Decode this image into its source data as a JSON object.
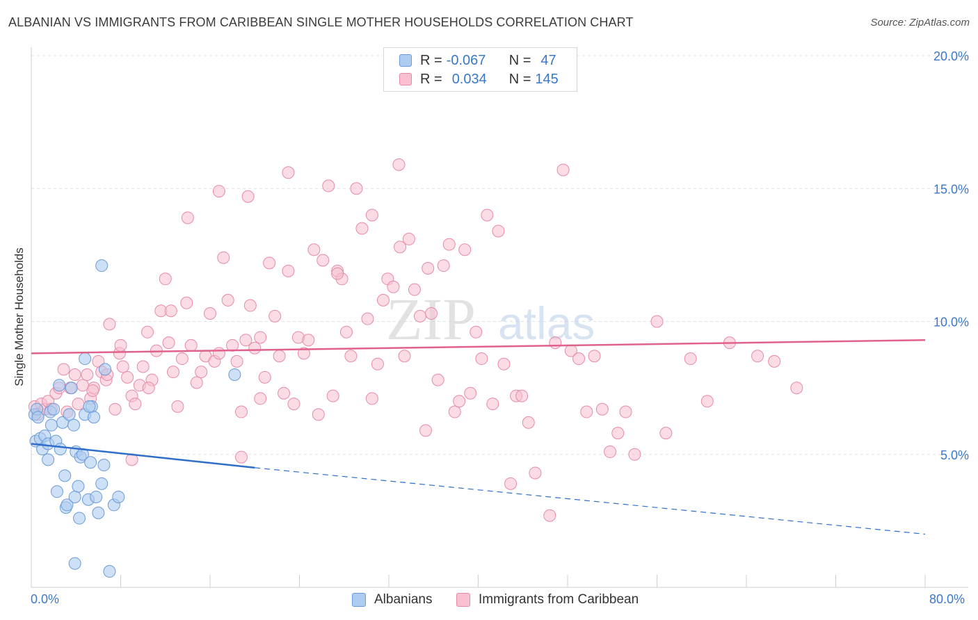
{
  "title": "ALBANIAN VS IMMIGRANTS FROM CARIBBEAN SINGLE MOTHER HOUSEHOLDS CORRELATION CHART",
  "source": "Source: ZipAtlas.com",
  "watermark": {
    "zip": "ZIP",
    "atlas": "atlas"
  },
  "legend": {
    "rows": [
      {
        "r_label": "R =",
        "r_value": "-0.067",
        "n_label": "N =",
        "n_value": "47",
        "color": "#aecbf0",
        "stroke": "#6a9bd8"
      },
      {
        "r_label": "R =",
        "r_value": "0.034",
        "n_label": "N =",
        "n_value": "145",
        "color": "#f8c0d0",
        "stroke": "#e68aa8"
      }
    ]
  },
  "bottom_legend": {
    "albanians": "Albanians",
    "caribbean": "Immigrants from Caribbean"
  },
  "chart_data": {
    "type": "scatter",
    "xlabel": "",
    "ylabel": "Single Mother Households",
    "xlim": [
      0,
      80
    ],
    "ylim": [
      0,
      20
    ],
    "x_tick_labels": {
      "min": "0.0%",
      "max": "80.0%"
    },
    "y_tick_labels": [
      "5.0%",
      "10.0%",
      "15.0%",
      "20.0%"
    ],
    "y_ticks": [
      5,
      10,
      15,
      20
    ],
    "grid": true,
    "legend_position": "top-center",
    "series": [
      {
        "name": "Albanians",
        "color": "#aecbf0",
        "stroke": "#6a9bd8",
        "trend": {
          "x0": 0,
          "y0": 5.4,
          "x1": 20,
          "y1": 4.5,
          "dash_x1": 80,
          "dash_y1": 2.0,
          "color": "#2f6fc9"
        },
        "points": [
          [
            0.3,
            6.5
          ],
          [
            0.5,
            6.7
          ],
          [
            0.4,
            5.5
          ],
          [
            0.8,
            5.6
          ],
          [
            1.0,
            5.2
          ],
          [
            1.2,
            5.7
          ],
          [
            1.5,
            4.8
          ],
          [
            1.7,
            6.6
          ],
          [
            1.5,
            5.4
          ],
          [
            1.8,
            6.1
          ],
          [
            2.0,
            6.7
          ],
          [
            2.2,
            5.5
          ],
          [
            2.3,
            3.6
          ],
          [
            2.5,
            7.6
          ],
          [
            2.6,
            5.2
          ],
          [
            2.8,
            6.2
          ],
          [
            3.0,
            4.2
          ],
          [
            3.1,
            3.0
          ],
          [
            3.2,
            3.1
          ],
          [
            3.4,
            6.5
          ],
          [
            3.6,
            7.5
          ],
          [
            3.8,
            6.1
          ],
          [
            3.9,
            3.4
          ],
          [
            4.0,
            5.1
          ],
          [
            4.2,
            3.8
          ],
          [
            4.3,
            2.6
          ],
          [
            4.4,
            4.9
          ],
          [
            4.6,
            5.0
          ],
          [
            4.8,
            6.5
          ],
          [
            5.1,
            3.3
          ],
          [
            5.3,
            4.7
          ],
          [
            5.4,
            6.8
          ],
          [
            5.6,
            6.4
          ],
          [
            5.8,
            3.4
          ],
          [
            6.0,
            2.8
          ],
          [
            6.3,
            3.9
          ],
          [
            6.5,
            4.6
          ],
          [
            6.6,
            8.2
          ],
          [
            7.0,
            0.6
          ],
          [
            7.4,
            3.1
          ],
          [
            7.8,
            3.4
          ],
          [
            3.9,
            0.9
          ],
          [
            6.3,
            12.1
          ],
          [
            5.2,
            6.8
          ],
          [
            18.2,
            8.0
          ],
          [
            0.6,
            6.4
          ],
          [
            4.8,
            8.6
          ]
        ]
      },
      {
        "name": "Immigrants from Caribbean",
        "color": "#f8c0d0",
        "stroke": "#e68aa8",
        "trend": {
          "x0": 0,
          "y0": 8.8,
          "x1": 80,
          "y1": 9.3,
          "color": "#e0628a"
        },
        "points": [
          [
            0.3,
            6.8
          ],
          [
            0.6,
            6.5
          ],
          [
            0.9,
            6.9
          ],
          [
            1.2,
            6.7
          ],
          [
            1.5,
            7.0
          ],
          [
            1.8,
            6.7
          ],
          [
            2.2,
            7.3
          ],
          [
            2.5,
            7.5
          ],
          [
            2.9,
            8.2
          ],
          [
            3.2,
            6.6
          ],
          [
            3.5,
            7.5
          ],
          [
            3.9,
            8.0
          ],
          [
            4.2,
            6.9
          ],
          [
            4.6,
            7.6
          ],
          [
            5.0,
            8.0
          ],
          [
            5.3,
            7.1
          ],
          [
            5.6,
            7.5
          ],
          [
            6.0,
            8.5
          ],
          [
            6.3,
            8.1
          ],
          [
            6.7,
            7.8
          ],
          [
            7.0,
            9.9
          ],
          [
            7.5,
            6.7
          ],
          [
            7.9,
            8.8
          ],
          [
            8.2,
            8.3
          ],
          [
            8.6,
            7.9
          ],
          [
            9.0,
            7.2
          ],
          [
            9.3,
            6.9
          ],
          [
            9.7,
            7.6
          ],
          [
            10.0,
            8.3
          ],
          [
            10.4,
            9.6
          ],
          [
            10.8,
            7.8
          ],
          [
            11.2,
            8.9
          ],
          [
            11.6,
            10.4
          ],
          [
            12.0,
            11.6
          ],
          [
            12.3,
            9.2
          ],
          [
            12.7,
            8.1
          ],
          [
            13.1,
            6.8
          ],
          [
            13.5,
            8.6
          ],
          [
            13.9,
            10.7
          ],
          [
            14.3,
            9.1
          ],
          [
            14.8,
            7.7
          ],
          [
            15.2,
            8.1
          ],
          [
            15.6,
            8.7
          ],
          [
            16.0,
            10.3
          ],
          [
            16.4,
            8.5
          ],
          [
            16.8,
            8.8
          ],
          [
            17.2,
            12.4
          ],
          [
            17.6,
            10.8
          ],
          [
            18.0,
            9.1
          ],
          [
            18.4,
            8.5
          ],
          [
            18.8,
            6.6
          ],
          [
            19.2,
            9.3
          ],
          [
            19.6,
            10.6
          ],
          [
            20.0,
            9.0
          ],
          [
            20.5,
            7.1
          ],
          [
            20.9,
            7.9
          ],
          [
            21.3,
            12.2
          ],
          [
            21.8,
            10.2
          ],
          [
            22.2,
            8.7
          ],
          [
            22.6,
            7.3
          ],
          [
            23.0,
            11.9
          ],
          [
            23.5,
            6.9
          ],
          [
            23.9,
            9.4
          ],
          [
            24.4,
            8.8
          ],
          [
            24.8,
            9.3
          ],
          [
            25.3,
            12.7
          ],
          [
            25.7,
            6.5
          ],
          [
            26.1,
            12.3
          ],
          [
            26.6,
            15.1
          ],
          [
            27.0,
            7.2
          ],
          [
            27.4,
            11.9
          ],
          [
            27.8,
            11.6
          ],
          [
            28.2,
            9.6
          ],
          [
            28.6,
            8.7
          ],
          [
            29.1,
            15.0
          ],
          [
            29.6,
            13.5
          ],
          [
            30.1,
            10.1
          ],
          [
            30.5,
            7.1
          ],
          [
            31.0,
            8.4
          ],
          [
            31.5,
            10.8
          ],
          [
            31.9,
            11.6
          ],
          [
            32.4,
            11.3
          ],
          [
            32.9,
            15.9
          ],
          [
            33.4,
            8.7
          ],
          [
            33.8,
            13.1
          ],
          [
            34.3,
            11.2
          ],
          [
            34.8,
            10.2
          ],
          [
            35.3,
            5.9
          ],
          [
            35.8,
            10.3
          ],
          [
            36.4,
            7.8
          ],
          [
            36.9,
            12.1
          ],
          [
            37.4,
            12.9
          ],
          [
            37.9,
            6.6
          ],
          [
            38.3,
            7.0
          ],
          [
            38.8,
            12.7
          ],
          [
            39.3,
            7.3
          ],
          [
            39.8,
            9.6
          ],
          [
            40.3,
            8.6
          ],
          [
            40.8,
            14.0
          ],
          [
            41.3,
            6.9
          ],
          [
            41.8,
            13.4
          ],
          [
            42.3,
            8.4
          ],
          [
            42.9,
            3.9
          ],
          [
            43.4,
            7.2
          ],
          [
            43.9,
            7.2
          ],
          [
            44.5,
            6.2
          ],
          [
            45.1,
            4.3
          ],
          [
            46.4,
            2.7
          ],
          [
            46.9,
            9.2
          ],
          [
            47.6,
            15.7
          ],
          [
            48.3,
            8.9
          ],
          [
            49.0,
            8.6
          ],
          [
            49.7,
            6.6
          ],
          [
            50.4,
            8.7
          ],
          [
            51.1,
            6.7
          ],
          [
            51.8,
            5.1
          ],
          [
            52.5,
            5.8
          ],
          [
            53.2,
            6.6
          ],
          [
            54.0,
            5.0
          ],
          [
            56.0,
            10.0
          ],
          [
            56.8,
            5.8
          ],
          [
            59.0,
            8.6
          ],
          [
            60.5,
            7.0
          ],
          [
            62.5,
            9.2
          ],
          [
            65.0,
            8.7
          ],
          [
            66.5,
            8.5
          ],
          [
            68.5,
            7.5
          ],
          [
            9.0,
            4.8
          ],
          [
            8.0,
            9.1
          ],
          [
            10.5,
            7.5
          ],
          [
            14.0,
            13.9
          ],
          [
            16.8,
            14.9
          ],
          [
            19.4,
            14.7
          ],
          [
            23.0,
            15.6
          ],
          [
            27.4,
            11.8
          ],
          [
            30.5,
            14.0
          ],
          [
            33.0,
            12.8
          ],
          [
            35.5,
            12.0
          ],
          [
            18.8,
            4.9
          ],
          [
            5.5,
            7.4
          ],
          [
            6.8,
            8.0
          ],
          [
            12.5,
            10.4
          ],
          [
            20.5,
            9.4
          ]
        ]
      }
    ]
  }
}
